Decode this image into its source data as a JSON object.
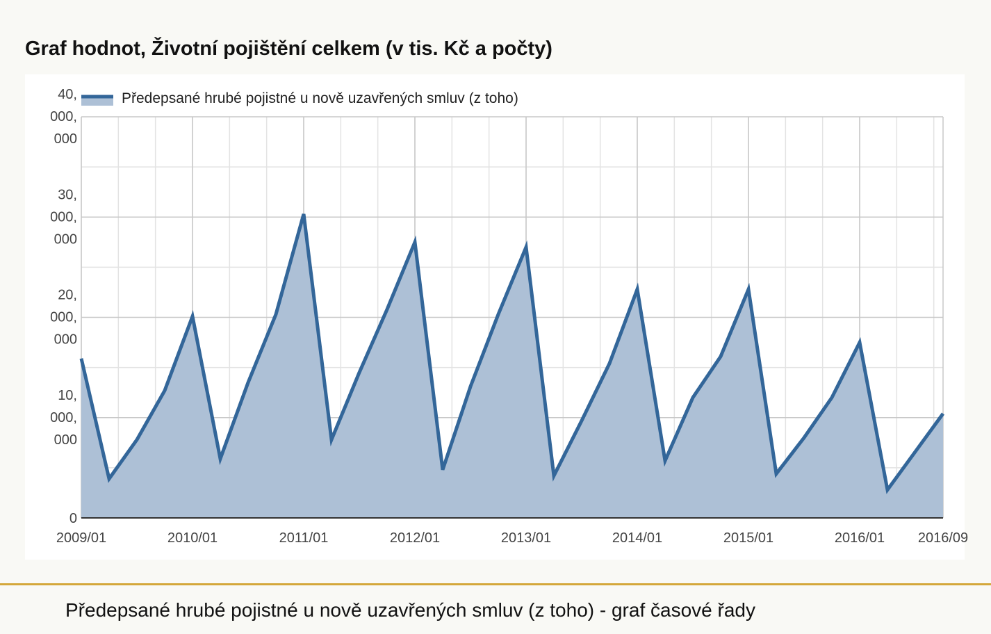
{
  "chart_data": {
    "type": "area",
    "title": "Graf hodnot, Životní pojištění celkem (v tis. Kč a počty)",
    "caption": "Předepsané hrubé pojistné u nově uzavřených smluv (z toho) - graf časové řady",
    "categories": [
      "2009/01",
      null,
      null,
      null,
      "2010/01",
      null,
      null,
      null,
      "2011/01",
      null,
      null,
      null,
      "2012/01",
      null,
      null,
      null,
      "2013/01",
      null,
      null,
      null,
      "2014/01",
      null,
      null,
      null,
      "2015/01",
      null,
      null,
      null,
      "2016/01",
      null,
      null,
      "2016/09"
    ],
    "series": [
      {
        "name": "Předepsané hrubé pojistné u nově uzavřených smluv (z toho)",
        "color": "#336699",
        "fill": "#adc0d6",
        "values": [
          15900000,
          3900000,
          7800000,
          12700000,
          20100000,
          5900000,
          13500000,
          20300000,
          30300000,
          7800000,
          14500000,
          20800000,
          27500000,
          4800000,
          13100000,
          20300000,
          27000000,
          4200000,
          9700000,
          15400000,
          22800000,
          5700000,
          12000000,
          16100000,
          22800000,
          4400000,
          8000000,
          12000000,
          17500000,
          2800000,
          6600000,
          10400000
        ]
      }
    ],
    "ylim": [
      0,
      40000000
    ],
    "yticks": [
      0,
      {
        "value": 10000000,
        "label": "10,000,000"
      },
      {
        "value": 20000000,
        "label": "20,000,000"
      },
      {
        "value": 30000000,
        "label": "30,000,000"
      },
      {
        "value": 40000000,
        "label": "40,000,000"
      }
    ],
    "grid": true
  }
}
